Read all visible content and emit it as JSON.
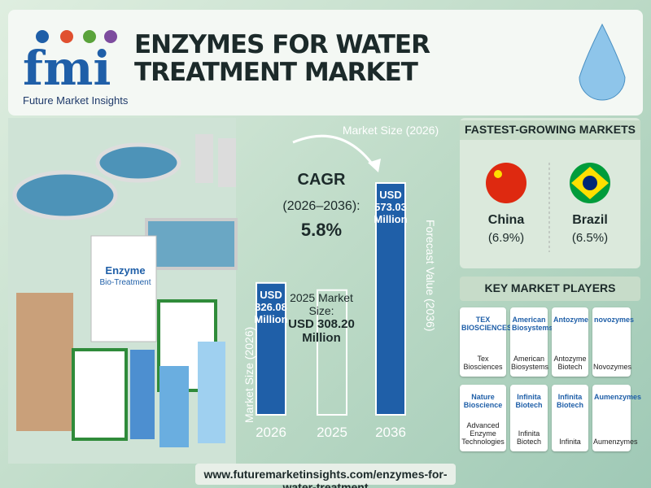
{
  "header": {
    "brand": "fmi",
    "company": "Future Market Insights",
    "title": "ENZYMES FOR WATER TREATMENT MARKET"
  },
  "chart_data": {
    "type": "bar",
    "title": "Market Size (2026)",
    "cagr_label": "CAGR",
    "cagr_period": "(2026–2036):",
    "cagr": "5.8%",
    "categories": [
      "2026",
      "2025",
      "2036"
    ],
    "values": [
      326.08,
      308.2,
      573.03
    ],
    "value_labels": [
      "USD 326.08 Million",
      "USD 308.20 Million",
      "USD 573.03 Million"
    ],
    "annotation": "2025 Market Size:",
    "y_label": "Market Size (2026)",
    "y2_label": "Forecast Value (2036)",
    "color": "#1f5fa8"
  },
  "markets": {
    "title": "FASTEST-GROWING MARKETS",
    "items": [
      {
        "name": "China",
        "rate": "(6.9%)"
      },
      {
        "name": "Brazil",
        "rate": "(6.5%)"
      }
    ]
  },
  "players": {
    "title": "KEY MARKET PLAYERS",
    "items": [
      {
        "logo": "TEX BIOSCIENCES",
        "name": "Tex Biosciences"
      },
      {
        "logo": "American Biosystems",
        "name": "American Biosystems"
      },
      {
        "logo": "Antozyme",
        "name": "Antozyme Biotech"
      },
      {
        "logo": "novozymes",
        "name": "Novozymes"
      },
      {
        "logo": "Nature Bioscience",
        "name": "Advanced Enzyme Technologies"
      },
      {
        "logo": "Infinita Biotech",
        "name": "Infinita Biotech"
      },
      {
        "logo": "Infinita Biotech",
        "name": "Infinita"
      },
      {
        "logo": "Aumenzymes",
        "name": "Aumenzymes"
      }
    ]
  },
  "products": {
    "name": "Enzyme",
    "type": "Bio-Treatment"
  },
  "footer": {
    "url": "www.futuremarketinsights.com/enzymes-for-water-treatment"
  }
}
